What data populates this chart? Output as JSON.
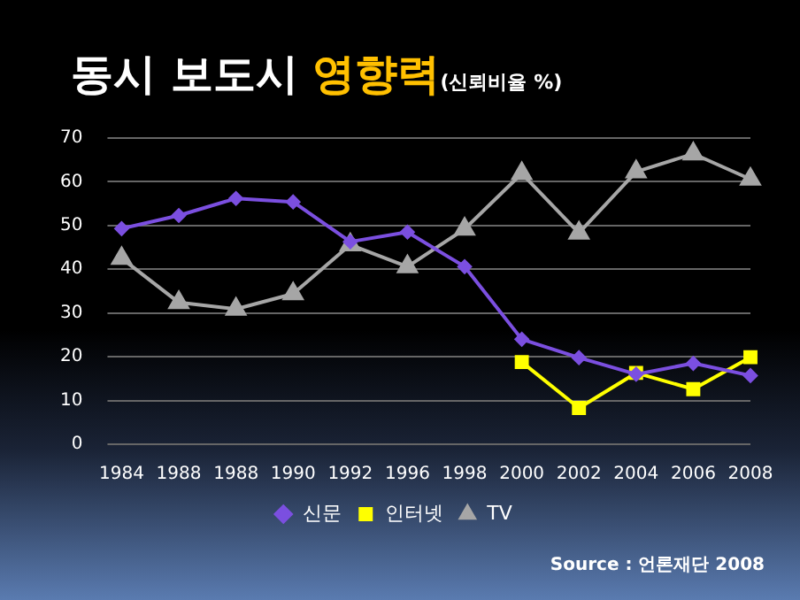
{
  "chart_data": {
    "type": "line",
    "title": "동시 보도시 영향력",
    "subtitle": "(신뢰비율 %)",
    "categories": [
      "1984",
      "1988",
      "1988",
      "1990",
      "1992",
      "1996",
      "1998",
      "2000",
      "2002",
      "2004",
      "2006",
      "2008"
    ],
    "series": [
      {
        "name": "신문",
        "color": "#7b4fe0",
        "marker": "diamond",
        "values": [
          49.3,
          52.3,
          56.2,
          55.4,
          46.3,
          48.5,
          40.6,
          24.0,
          19.8,
          16.0,
          18.5,
          15.7
        ]
      },
      {
        "name": "인터넷",
        "color": "#ffff00",
        "marker": "square",
        "values": [
          null,
          null,
          null,
          null,
          null,
          null,
          null,
          18.8,
          8.3,
          16.3,
          12.6,
          19.9
        ]
      },
      {
        "name": "TV",
        "color": "#a6a6a6",
        "marker": "triangle",
        "values": [
          42.5,
          32.4,
          30.9,
          34.4,
          45.6,
          40.6,
          49.2,
          61.9,
          48.3,
          62.3,
          66.4,
          60.6
        ]
      }
    ],
    "ylim": [
      0,
      70
    ],
    "yticks": [
      0,
      10,
      20,
      30,
      40,
      50,
      60,
      70
    ],
    "grid": "y",
    "legend": "bottom",
    "annotations": [
      "Source : 언론재단 2008"
    ]
  }
}
